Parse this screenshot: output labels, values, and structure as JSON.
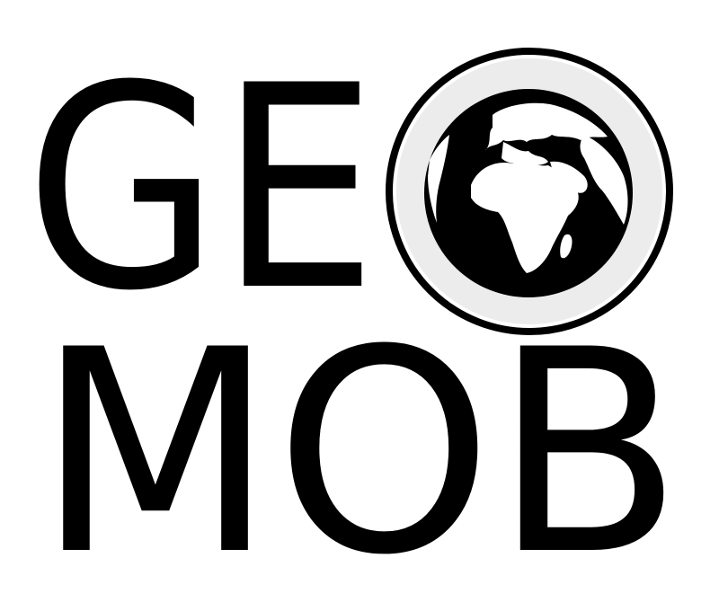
{
  "logo": {
    "line1": "GEO",
    "line1_letters": "GE",
    "line2": "MOB",
    "globe_icon": "earth-globe-icon",
    "colors": {
      "ink": "#000000",
      "background": "#ffffff",
      "ring": "#ececec"
    }
  }
}
